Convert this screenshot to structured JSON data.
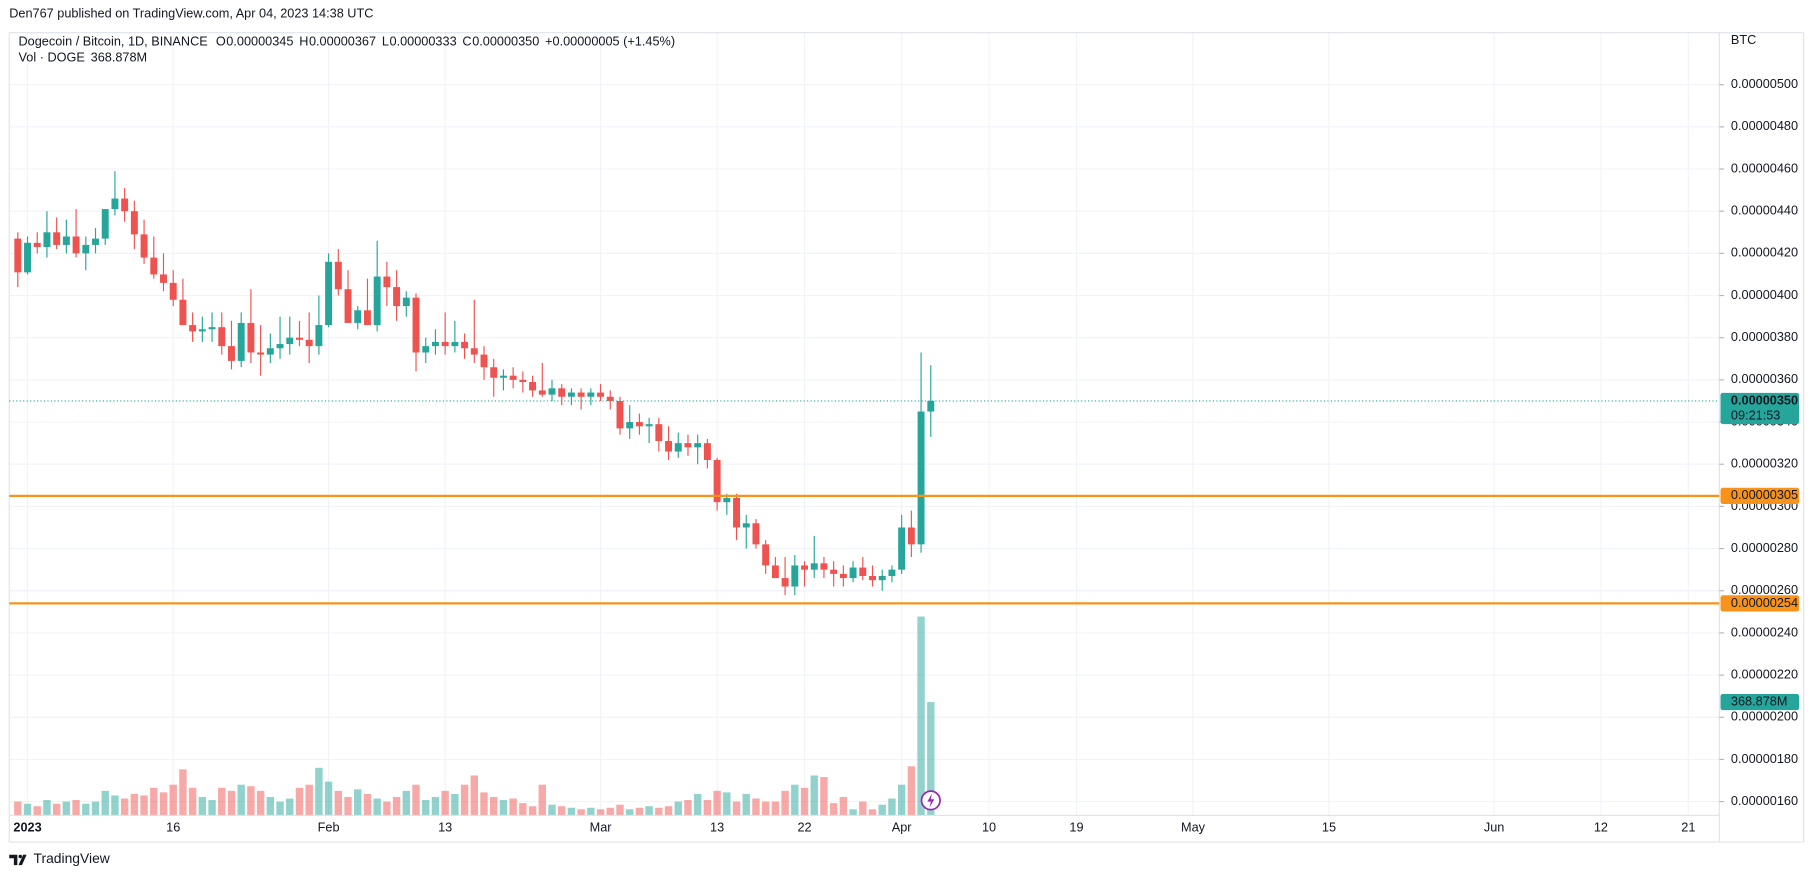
{
  "header": {
    "attribution": "Den767 published on TradingView.com, Apr 04, 2023 14:38 UTC"
  },
  "footer": {
    "brand": "TradingView"
  },
  "chart_data": {
    "type": "candlestick",
    "title": "Dogecoin / Bitcoin, 1D, BINANCE",
    "ohlc_labels": [
      {
        "key": "O",
        "text": "0.00000345"
      },
      {
        "key": "H",
        "text": "0.00000367"
      },
      {
        "key": "L",
        "text": "0.00000333"
      },
      {
        "key": "C",
        "text": "0.00000350"
      }
    ],
    "change_label": "+0.00000005 (+1.45%)",
    "currency": "BTC",
    "volume_name": "Vol · DOGE",
    "volume_label": "368.878M",
    "up_color": "#26a69a",
    "down_color": "#ef5350",
    "grid": true,
    "categories": [
      null,
      "2023",
      null,
      null,
      null,
      null,
      null,
      null,
      null,
      null,
      null,
      null,
      null,
      null,
      null,
      null,
      "16",
      null,
      null,
      null,
      null,
      null,
      null,
      null,
      null,
      null,
      null,
      null,
      null,
      null,
      null,
      null,
      "Feb",
      null,
      null,
      null,
      null,
      null,
      null,
      null,
      null,
      null,
      null,
      null,
      "13",
      null,
      null,
      null,
      null,
      null,
      null,
      null,
      null,
      null,
      null,
      null,
      null,
      null,
      null,
      null,
      "Mar",
      null,
      null,
      null,
      null,
      null,
      null,
      null,
      null,
      null,
      null,
      null,
      "13",
      null,
      null,
      null,
      null,
      null,
      null,
      null,
      null,
      "22",
      null,
      null,
      null,
      null,
      null,
      null,
      null,
      null,
      null,
      "Apr",
      null,
      null,
      null,
      null,
      null,
      null,
      null,
      null,
      "10",
      null,
      null,
      null,
      null,
      null,
      null,
      null,
      null,
      "19",
      null,
      null,
      null,
      null,
      null,
      null,
      null,
      null,
      null,
      null,
      null,
      "May",
      null,
      null,
      null,
      null,
      null,
      null,
      null,
      null,
      null,
      null,
      null,
      null,
      null,
      "15",
      null,
      null,
      null,
      null,
      null,
      null,
      null,
      null,
      null,
      null,
      null,
      null,
      null,
      null,
      null,
      null,
      "Jun",
      null,
      null,
      null,
      null,
      null,
      null,
      null,
      null,
      null,
      null,
      "12",
      null,
      null,
      null,
      null,
      null,
      null,
      null,
      null,
      "21",
      null,
      null,
      null
    ],
    "open": [
      4.27e-06,
      4.11e-06,
      4.25e-06,
      4.23e-06,
      4.3e-06,
      4.24e-06,
      4.28e-06,
      4.2e-06,
      4.24e-06,
      4.27e-06,
      4.41e-06,
      4.46e-06,
      4.4e-06,
      4.29e-06,
      4.18e-06,
      4.1e-06,
      4.06e-06,
      3.98e-06,
      3.86e-06,
      3.83e-06,
      3.84e-06,
      3.85e-06,
      3.76e-06,
      3.69e-06,
      3.87e-06,
      3.73e-06,
      3.72e-06,
      3.75e-06,
      3.77e-06,
      3.8e-06,
      3.79e-06,
      3.76e-06,
      3.86e-06,
      4.16e-06,
      4.03e-06,
      3.87e-06,
      3.93e-06,
      3.86e-06,
      4.09e-06,
      4.04e-06,
      3.95e-06,
      3.99e-06,
      3.73e-06,
      3.76e-06,
      3.78e-06,
      3.76e-06,
      3.78e-06,
      3.75e-06,
      3.72e-06,
      3.66e-06,
      3.61e-06,
      3.62e-06,
      3.6e-06,
      3.59e-06,
      3.55e-06,
      3.53e-06,
      3.56e-06,
      3.52e-06,
      3.54e-06,
      3.52e-06,
      3.54e-06,
      3.52e-06,
      3.5e-06,
      3.37e-06,
      3.4e-06,
      3.38e-06,
      3.39e-06,
      3.31e-06,
      3.26e-06,
      3.3e-06,
      3.28e-06,
      3.3e-06,
      3.22e-06,
      3.02e-06,
      3.04e-06,
      2.9e-06,
      2.92e-06,
      2.82e-06,
      2.72e-06,
      2.66e-06,
      2.62e-06,
      2.72e-06,
      2.7e-06,
      2.73e-06,
      2.7e-06,
      2.68e-06,
      2.66e-06,
      2.71e-06,
      2.67e-06,
      2.65e-06,
      2.67e-06,
      2.7e-06,
      2.9e-06,
      2.82e-06,
      3.45e-06,
      null,
      null,
      null,
      null,
      null,
      null,
      null,
      null,
      null,
      null,
      null,
      null,
      null,
      null,
      null,
      null,
      null,
      null,
      null,
      null,
      null,
      null,
      null,
      null,
      null,
      null,
      null,
      null,
      null,
      null,
      null,
      null,
      null,
      null,
      null,
      null,
      null,
      null,
      null,
      null,
      null,
      null,
      null,
      null,
      null,
      null,
      null,
      null,
      null,
      null,
      null,
      null,
      null,
      null,
      null,
      null,
      null,
      null,
      null,
      null,
      null,
      null,
      null,
      null,
      null,
      null,
      null,
      null,
      null,
      null,
      null,
      null,
      null,
      null,
      null,
      null,
      null,
      null,
      null,
      null,
      null
    ],
    "high": [
      4.3e-06,
      4.28e-06,
      4.3e-06,
      4.4e-06,
      4.37e-06,
      4.36e-06,
      4.41e-06,
      4.28e-06,
      4.32e-06,
      4.41e-06,
      4.59e-06,
      4.51e-06,
      4.45e-06,
      4.36e-06,
      4.28e-06,
      4.2e-06,
      4.12e-06,
      4.08e-06,
      3.92e-06,
      3.9e-06,
      3.92e-06,
      3.92e-06,
      3.88e-06,
      3.92e-06,
      4.03e-06,
      3.86e-06,
      3.82e-06,
      3.9e-06,
      3.9e-06,
      3.88e-06,
      3.92e-06,
      4e-06,
      4.2e-06,
      4.22e-06,
      4.12e-06,
      3.95e-06,
      4.08e-06,
      4.26e-06,
      4.16e-06,
      4.12e-06,
      4.02e-06,
      4.01e-06,
      3.8e-06,
      3.84e-06,
      3.92e-06,
      3.88e-06,
      3.82e-06,
      3.98e-06,
      3.76e-06,
      3.7e-06,
      3.65e-06,
      3.66e-06,
      3.64e-06,
      3.62e-06,
      3.68e-06,
      3.6e-06,
      3.58e-06,
      3.56e-06,
      3.56e-06,
      3.56e-06,
      3.58e-06,
      3.55e-06,
      3.52e-06,
      3.48e-06,
      3.44e-06,
      3.42e-06,
      3.42e-06,
      3.38e-06,
      3.35e-06,
      3.34e-06,
      3.34e-06,
      3.32e-06,
      3.23e-06,
      3.06e-06,
      3.06e-06,
      2.96e-06,
      2.94e-06,
      2.84e-06,
      2.76e-06,
      2.76e-06,
      2.77e-06,
      2.74e-06,
      2.86e-06,
      2.76e-06,
      2.74e-06,
      2.72e-06,
      2.74e-06,
      2.76e-06,
      2.72e-06,
      2.7e-06,
      2.72e-06,
      2.96e-06,
      2.98e-06,
      3.73e-06,
      3.67e-06,
      null,
      null,
      null,
      null,
      null,
      null,
      null,
      null,
      null,
      null,
      null,
      null,
      null,
      null,
      null,
      null,
      null,
      null,
      null,
      null,
      null,
      null,
      null,
      null,
      null,
      null,
      null,
      null,
      null,
      null,
      null,
      null,
      null,
      null,
      null,
      null,
      null,
      null,
      null,
      null,
      null,
      null,
      null,
      null,
      null,
      null,
      null,
      null,
      null,
      null,
      null,
      null,
      null,
      null,
      null,
      null,
      null,
      null,
      null,
      null,
      null,
      null,
      null,
      null,
      null,
      null,
      null,
      null,
      null,
      null,
      null,
      null,
      null,
      null,
      null,
      null,
      null,
      null,
      null,
      null,
      null
    ],
    "low": [
      4.04e-06,
      4.1e-06,
      4.2e-06,
      4.18e-06,
      4.22e-06,
      4.2e-06,
      4.18e-06,
      4.12e-06,
      4.2e-06,
      4.24e-06,
      4.38e-06,
      4.35e-06,
      4.22e-06,
      4.15e-06,
      4.08e-06,
      4.02e-06,
      3.95e-06,
      3.86e-06,
      3.78e-06,
      3.78e-06,
      3.78e-06,
      3.72e-06,
      3.65e-06,
      3.66e-06,
      3.68e-06,
      3.62e-06,
      3.68e-06,
      3.7e-06,
      3.72e-06,
      3.76e-06,
      3.68e-06,
      3.72e-06,
      3.85e-06,
      4e-06,
      3.88e-06,
      3.84e-06,
      3.86e-06,
      3.83e-06,
      3.95e-06,
      3.88e-06,
      3.9e-06,
      3.64e-06,
      3.68e-06,
      3.72e-06,
      3.72e-06,
      3.73e-06,
      3.7e-06,
      3.68e-06,
      3.6e-06,
      3.52e-06,
      3.55e-06,
      3.56e-06,
      3.54e-06,
      3.52e-06,
      3.52e-06,
      3.5e-06,
      3.48e-06,
      3.48e-06,
      3.46e-06,
      3.48e-06,
      3.5e-06,
      3.46e-06,
      3.34e-06,
      3.32e-06,
      3.34e-06,
      3.3e-06,
      3.26e-06,
      3.22e-06,
      3.23e-06,
      3.24e-06,
      3.2e-06,
      3.18e-06,
      2.98e-06,
      2.96e-06,
      2.84e-06,
      2.8e-06,
      2.8e-06,
      2.68e-06,
      2.66e-06,
      2.58e-06,
      2.58e-06,
      2.62e-06,
      2.66e-06,
      2.66e-06,
      2.62e-06,
      2.62e-06,
      2.64e-06,
      2.65e-06,
      2.62e-06,
      2.6e-06,
      2.64e-06,
      2.68e-06,
      2.76e-06,
      2.78e-06,
      3.33e-06,
      null,
      null,
      null,
      null,
      null,
      null,
      null,
      null,
      null,
      null,
      null,
      null,
      null,
      null,
      null,
      null,
      null,
      null,
      null,
      null,
      null,
      null,
      null,
      null,
      null,
      null,
      null,
      null,
      null,
      null,
      null,
      null,
      null,
      null,
      null,
      null,
      null,
      null,
      null,
      null,
      null,
      null,
      null,
      null,
      null,
      null,
      null,
      null,
      null,
      null,
      null,
      null,
      null,
      null,
      null,
      null,
      null,
      null,
      null,
      null,
      null,
      null,
      null,
      null,
      null,
      null,
      null,
      null,
      null,
      null,
      null,
      null,
      null,
      null,
      null,
      null,
      null,
      null,
      null,
      null,
      null
    ],
    "close": [
      4.11e-06,
      4.25e-06,
      4.23e-06,
      4.3e-06,
      4.24e-06,
      4.28e-06,
      4.2e-06,
      4.24e-06,
      4.27e-06,
      4.41e-06,
      4.46e-06,
      4.4e-06,
      4.29e-06,
      4.18e-06,
      4.1e-06,
      4.06e-06,
      3.98e-06,
      3.86e-06,
      3.83e-06,
      3.84e-06,
      3.85e-06,
      3.76e-06,
      3.69e-06,
      3.87e-06,
      3.73e-06,
      3.72e-06,
      3.75e-06,
      3.77e-06,
      3.8e-06,
      3.79e-06,
      3.76e-06,
      3.86e-06,
      4.16e-06,
      4.03e-06,
      3.87e-06,
      3.93e-06,
      3.86e-06,
      4.09e-06,
      4.04e-06,
      3.95e-06,
      3.99e-06,
      3.73e-06,
      3.76e-06,
      3.78e-06,
      3.76e-06,
      3.78e-06,
      3.75e-06,
      3.72e-06,
      3.66e-06,
      3.61e-06,
      3.62e-06,
      3.6e-06,
      3.59e-06,
      3.55e-06,
      3.53e-06,
      3.56e-06,
      3.52e-06,
      3.54e-06,
      3.52e-06,
      3.54e-06,
      3.52e-06,
      3.5e-06,
      3.37e-06,
      3.4e-06,
      3.38e-06,
      3.39e-06,
      3.31e-06,
      3.26e-06,
      3.3e-06,
      3.28e-06,
      3.3e-06,
      3.22e-06,
      3.02e-06,
      3.04e-06,
      2.9e-06,
      2.92e-06,
      2.82e-06,
      2.72e-06,
      2.66e-06,
      2.62e-06,
      2.72e-06,
      2.7e-06,
      2.73e-06,
      2.7e-06,
      2.68e-06,
      2.66e-06,
      2.71e-06,
      2.67e-06,
      2.65e-06,
      2.67e-06,
      2.7e-06,
      2.9e-06,
      2.82e-06,
      3.45e-06,
      3.5e-06,
      null,
      null,
      null,
      null,
      null,
      null,
      null,
      null,
      null,
      null,
      null,
      null,
      null,
      null,
      null,
      null,
      null,
      null,
      null,
      null,
      null,
      null,
      null,
      null,
      null,
      null,
      null,
      null,
      null,
      null,
      null,
      null,
      null,
      null,
      null,
      null,
      null,
      null,
      null,
      null,
      null,
      null,
      null,
      null,
      null,
      null,
      null,
      null,
      null,
      null,
      null,
      null,
      null,
      null,
      null,
      null,
      null,
      null,
      null,
      null,
      null,
      null,
      null,
      null,
      null,
      null,
      null,
      null,
      null,
      null,
      null,
      null,
      null,
      null,
      null,
      null,
      null,
      null,
      null,
      null,
      null
    ],
    "volume": [
      45,
      38,
      30,
      50,
      38,
      45,
      50,
      38,
      45,
      80,
      65,
      55,
      70,
      65,
      90,
      75,
      100,
      150,
      90,
      60,
      50,
      90,
      80,
      100,
      95,
      80,
      60,
      45,
      55,
      90,
      100,
      155,
      110,
      80,
      60,
      85,
      70,
      55,
      45,
      60,
      80,
      100,
      50,
      60,
      80,
      70,
      100,
      130,
      75,
      60,
      50,
      55,
      40,
      30,
      100,
      35,
      30,
      25,
      20,
      25,
      20,
      25,
      35,
      20,
      25,
      30,
      25,
      30,
      45,
      50,
      70,
      50,
      80,
      75,
      45,
      70,
      55,
      45,
      45,
      80,
      100,
      90,
      130,
      125,
      40,
      60,
      20,
      45,
      20,
      35,
      55,
      100,
      160,
      647,
      368.878,
      null,
      null,
      null,
      null,
      null,
      null,
      null,
      null,
      null,
      null,
      null,
      null,
      null,
      null,
      null,
      null,
      null,
      null,
      null,
      null,
      null,
      null,
      null,
      null,
      null,
      null,
      null,
      null,
      null,
      null,
      null,
      null,
      null,
      null,
      null,
      null,
      null,
      null,
      null,
      null,
      null,
      null,
      null,
      null,
      null,
      null,
      null,
      null,
      null,
      null,
      null,
      null,
      null,
      null,
      null,
      null,
      null,
      null,
      null,
      null,
      null,
      null,
      null,
      null,
      null,
      null,
      null,
      null,
      null,
      null,
      null,
      null,
      null,
      null,
      null,
      null,
      null,
      null,
      null,
      null,
      null
    ],
    "ylim": [
      1.53e-06,
      5.25e-06
    ],
    "yticks": [
      {
        "value": 1.6e-06,
        "label": "0.00000160"
      },
      {
        "value": 1.8e-06,
        "label": "0.00000180"
      },
      {
        "value": 2e-06,
        "label": "0.00000200"
      },
      {
        "value": 2.2e-06,
        "label": "0.00000220"
      },
      {
        "value": 2.4e-06,
        "label": "0.00000240"
      },
      {
        "value": 2.6e-06,
        "label": "0.00000260"
      },
      {
        "value": 2.8e-06,
        "label": "0.00000280"
      },
      {
        "value": 3e-06,
        "label": "0.00000300"
      },
      {
        "value": 3.2e-06,
        "label": "0.00000320"
      },
      {
        "value": 3.4e-06,
        "label": "0.00000340"
      },
      {
        "value": 3.6e-06,
        "label": "0.00000360"
      },
      {
        "value": 3.8e-06,
        "label": "0.00000380"
      },
      {
        "value": 4e-06,
        "label": "0.00000400"
      },
      {
        "value": 4.2e-06,
        "label": "0.00000420"
      },
      {
        "value": 4.4e-06,
        "label": "0.00000440"
      },
      {
        "value": 4.6e-06,
        "label": "0.00000460"
      },
      {
        "value": 4.8e-06,
        "label": "0.00000480"
      },
      {
        "value": 5e-06,
        "label": "0.00000500"
      }
    ],
    "price_lines": [
      {
        "value": 3.05e-06,
        "label": "0.00000305",
        "color": "#f7931a"
      },
      {
        "value": 2.54e-06,
        "label": "0.00000254",
        "color": "#f7931a"
      }
    ],
    "last_price": {
      "value": 3.5e-06,
      "label": "0.00000350",
      "countdown": "09:21:53"
    }
  }
}
